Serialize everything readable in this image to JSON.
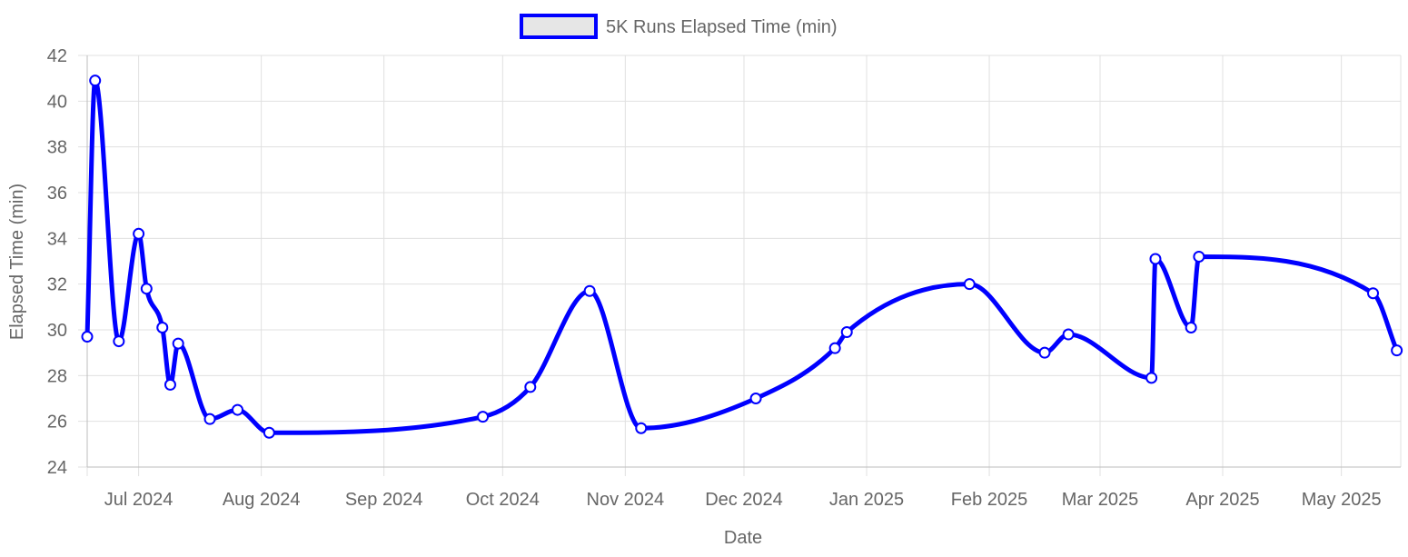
{
  "chart_data": {
    "type": "line",
    "xlabel": "Date",
    "ylabel": "Elapsed Time (min)",
    "ylim": [
      24,
      42
    ],
    "yticks": [
      24,
      26,
      28,
      30,
      32,
      34,
      36,
      38,
      40,
      42
    ],
    "xlim": [
      "2024-06-18",
      "2025-05-16"
    ],
    "xticks": [
      {
        "date": "2024-07-01",
        "label": "Jul 2024"
      },
      {
        "date": "2024-08-01",
        "label": "Aug 2024"
      },
      {
        "date": "2024-09-01",
        "label": "Sep 2024"
      },
      {
        "date": "2024-10-01",
        "label": "Oct 2024"
      },
      {
        "date": "2024-11-01",
        "label": "Nov 2024"
      },
      {
        "date": "2024-12-01",
        "label": "Dec 2024"
      },
      {
        "date": "2025-01-01",
        "label": "Jan 2025"
      },
      {
        "date": "2025-02-01",
        "label": "Feb 2025"
      },
      {
        "date": "2025-03-01",
        "label": "Mar 2025"
      },
      {
        "date": "2025-04-01",
        "label": "Apr 2025"
      },
      {
        "date": "2025-05-01",
        "label": "May 2025"
      }
    ],
    "grid": true,
    "legend_position": "top-center",
    "series": [
      {
        "name": "5K Runs Elapsed Time (min)",
        "color": "#0000ff",
        "point_fill": "#ffffff",
        "points": [
          {
            "x": "2024-06-18",
            "y": 29.7
          },
          {
            "x": "2024-06-20",
            "y": 40.9
          },
          {
            "x": "2024-06-26",
            "y": 29.5
          },
          {
            "x": "2024-07-01",
            "y": 34.2
          },
          {
            "x": "2024-07-03",
            "y": 31.8
          },
          {
            "x": "2024-07-07",
            "y": 30.1
          },
          {
            "x": "2024-07-09",
            "y": 27.6
          },
          {
            "x": "2024-07-11",
            "y": 29.4
          },
          {
            "x": "2024-07-19",
            "y": 26.1
          },
          {
            "x": "2024-07-26",
            "y": 26.5
          },
          {
            "x": "2024-08-03",
            "y": 25.5
          },
          {
            "x": "2024-09-26",
            "y": 26.2
          },
          {
            "x": "2024-10-08",
            "y": 27.5
          },
          {
            "x": "2024-10-23",
            "y": 31.7
          },
          {
            "x": "2024-11-05",
            "y": 25.7
          },
          {
            "x": "2024-12-04",
            "y": 27.0
          },
          {
            "x": "2024-12-24",
            "y": 29.2
          },
          {
            "x": "2024-12-27",
            "y": 29.9
          },
          {
            "x": "2025-01-27",
            "y": 32.0
          },
          {
            "x": "2025-02-15",
            "y": 29.0
          },
          {
            "x": "2025-02-21",
            "y": 29.8
          },
          {
            "x": "2025-03-14",
            "y": 27.9
          },
          {
            "x": "2025-03-15",
            "y": 33.1
          },
          {
            "x": "2025-03-24",
            "y": 30.1
          },
          {
            "x": "2025-03-26",
            "y": 33.2
          },
          {
            "x": "2025-05-09",
            "y": 31.6
          },
          {
            "x": "2025-05-15",
            "y": 29.1
          }
        ]
      }
    ]
  }
}
